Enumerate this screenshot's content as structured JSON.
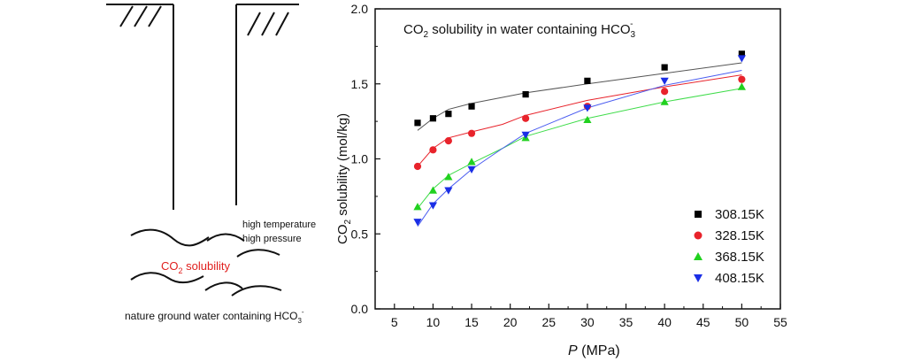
{
  "schematic": {
    "label_top_1": "high temperature",
    "label_top_2": "high pressure",
    "label_center_main": "CO",
    "label_center_sub": "2",
    "label_center_rest": " solubility",
    "label_bottom_main": "nature ground water containing HCO",
    "label_bottom_sub": "3",
    "label_bottom_sup": "-",
    "highlight_color": "#e0201e"
  },
  "chart_data": {
    "type": "scatter",
    "title_main": "CO",
    "title_sub": "2",
    "title_rest": " solubility in water containing HCO",
    "title_sub2": "3",
    "title_sup": "-",
    "xlabel_italic": "P",
    "xlabel_rest": " (MPa)",
    "ylabel_main": "CO",
    "ylabel_sub": "2",
    "ylabel_rest": " solubility (mol/kg)",
    "xlim": [
      2.5,
      55
    ],
    "ylim": [
      0,
      2.0
    ],
    "x_ticks": [
      5,
      10,
      15,
      20,
      25,
      30,
      35,
      40,
      45,
      50,
      55
    ],
    "x_tick_labels": [
      "5",
      "10",
      "15",
      "20",
      "25",
      "30",
      "35",
      "40",
      "45",
      "50",
      "55"
    ],
    "y_ticks": [
      0,
      0.5,
      1.0,
      1.5,
      2.0
    ],
    "y_tick_labels": [
      "0.0",
      "0.5",
      "1.0",
      "1.5",
      "2.0"
    ],
    "legend_position": "lower-right",
    "series": [
      {
        "name": "308.15K",
        "marker": "square",
        "color": "#000000",
        "line_color": "#555555",
        "x": [
          8,
          10,
          12,
          15,
          22,
          30,
          40,
          50
        ],
        "y": [
          1.24,
          1.27,
          1.3,
          1.35,
          1.43,
          1.52,
          1.61,
          1.7
        ],
        "fit": [
          1.19,
          1.27,
          1.33,
          1.37,
          1.41,
          1.44,
          1.5,
          1.57,
          1.64
        ]
      },
      {
        "name": "328.15K",
        "marker": "circle",
        "color": "#e8232b",
        "line_color": "#e8232b",
        "x": [
          8,
          10,
          12,
          15,
          22,
          30,
          40,
          50
        ],
        "y": [
          0.95,
          1.06,
          1.12,
          1.17,
          1.27,
          1.35,
          1.45,
          1.53
        ],
        "fit": [
          0.95,
          1.07,
          1.14,
          1.18,
          1.23,
          1.29,
          1.39,
          1.48,
          1.56
        ]
      },
      {
        "name": "368.15K",
        "marker": "triangle-up",
        "color": "#21d11f",
        "line_color": "#3fdc4a",
        "x": [
          8,
          10,
          12,
          15,
          22,
          30,
          40,
          50
        ],
        "y": [
          0.68,
          0.79,
          0.88,
          0.98,
          1.14,
          1.26,
          1.38,
          1.48
        ],
        "fit": [
          0.67,
          0.8,
          0.89,
          0.97,
          1.07,
          1.15,
          1.27,
          1.38,
          1.47
        ]
      },
      {
        "name": "408.15K",
        "marker": "triangle-down",
        "color": "#1a2ee6",
        "line_color": "#4a5cf0",
        "x": [
          8,
          10,
          12,
          15,
          22,
          30,
          40,
          50
        ],
        "y": [
          0.58,
          0.69,
          0.79,
          0.93,
          1.16,
          1.34,
          1.52,
          1.67
        ],
        "fit": [
          0.55,
          0.7,
          0.8,
          0.93,
          1.07,
          1.17,
          1.34,
          1.49,
          1.59
        ]
      }
    ],
    "fit_x": [
      8,
      10,
      12,
      15,
      19,
      22,
      30,
      40,
      50
    ]
  }
}
